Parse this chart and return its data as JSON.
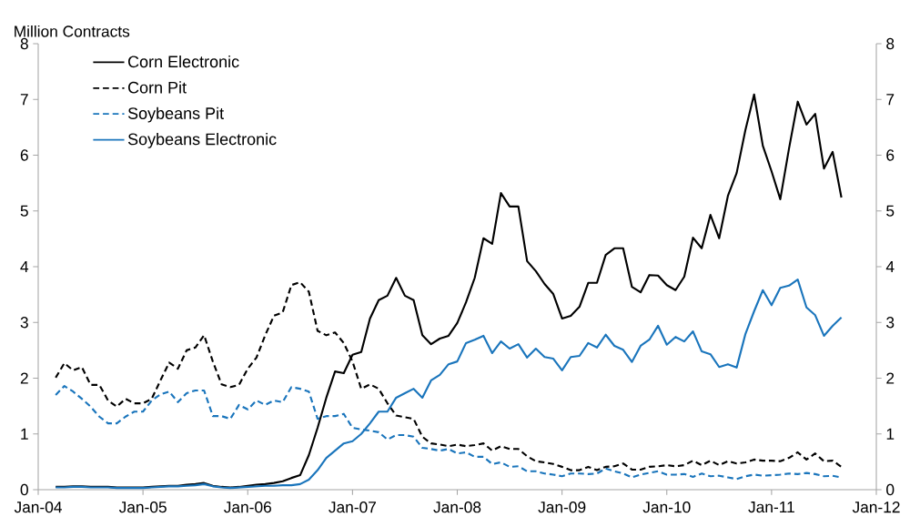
{
  "chart_data": {
    "type": "line",
    "ylabel": "Million Contracts",
    "x": [
      "2004-03",
      "2004-04",
      "2004-05",
      "2004-06",
      "2004-07",
      "2004-08",
      "2004-09",
      "2004-10",
      "2004-11",
      "2004-12",
      "2005-01",
      "2005-02",
      "2005-03",
      "2005-04",
      "2005-05",
      "2005-06",
      "2005-07",
      "2005-08",
      "2005-09",
      "2005-10",
      "2005-11",
      "2005-12",
      "2006-01",
      "2006-02",
      "2006-03",
      "2006-04",
      "2006-05",
      "2006-06",
      "2006-07",
      "2006-08",
      "2006-09",
      "2006-10",
      "2006-11",
      "2006-12",
      "2007-01",
      "2007-02",
      "2007-03",
      "2007-04",
      "2007-05",
      "2007-06",
      "2007-07",
      "2007-08",
      "2007-09",
      "2007-10",
      "2007-11",
      "2007-12",
      "2008-01",
      "2008-02",
      "2008-03",
      "2008-04",
      "2008-05",
      "2008-06",
      "2008-07",
      "2008-08",
      "2008-09",
      "2008-10",
      "2008-11",
      "2008-12",
      "2009-01",
      "2009-02",
      "2009-03",
      "2009-04",
      "2009-05",
      "2009-06",
      "2009-07",
      "2009-08",
      "2009-09",
      "2009-10",
      "2009-11",
      "2009-12",
      "2010-01",
      "2010-02",
      "2010-03",
      "2010-04",
      "2010-05",
      "2010-06",
      "2010-07",
      "2010-08",
      "2010-09",
      "2010-10",
      "2010-11",
      "2010-12",
      "2011-01",
      "2011-02",
      "2011-03",
      "2011-04",
      "2011-05",
      "2011-06",
      "2011-07",
      "2011-08",
      "2011-09"
    ],
    "series": [
      {
        "name": "Corn Electronic",
        "color": "#000000",
        "line_style": "solid",
        "values": [
          0.05,
          0.05,
          0.06,
          0.06,
          0.05,
          0.05,
          0.05,
          0.04,
          0.04,
          0.04,
          0.04,
          0.05,
          0.06,
          0.07,
          0.07,
          0.09,
          0.1,
          0.12,
          0.07,
          0.05,
          0.04,
          0.05,
          0.07,
          0.09,
          0.1,
          0.12,
          0.15,
          0.21,
          0.26,
          0.62,
          1.11,
          1.65,
          2.12,
          2.09,
          2.42,
          2.47,
          3.07,
          3.4,
          3.48,
          3.8,
          3.48,
          3.4,
          2.77,
          2.61,
          2.71,
          2.76,
          2.99,
          3.36,
          3.8,
          4.51,
          4.41,
          5.32,
          5.08,
          5.08,
          4.1,
          3.92,
          3.69,
          3.51,
          3.07,
          3.12,
          3.28,
          3.71,
          3.71,
          4.21,
          4.33,
          4.33,
          3.64,
          3.54,
          3.85,
          3.84,
          3.67,
          3.58,
          3.82,
          4.52,
          4.33,
          4.93,
          4.51,
          5.27,
          5.68,
          6.45,
          7.09,
          6.17,
          5.71,
          5.21,
          6.12,
          6.96,
          6.55,
          6.74,
          5.76,
          6.06,
          5.24
        ]
      },
      {
        "name": "Corn Pit",
        "color": "#000000",
        "line_style": "dashed",
        "values": [
          2.01,
          2.27,
          2.14,
          2.2,
          1.88,
          1.88,
          1.6,
          1.49,
          1.63,
          1.55,
          1.55,
          1.63,
          1.96,
          2.28,
          2.17,
          2.5,
          2.55,
          2.77,
          2.3,
          1.89,
          1.84,
          1.88,
          2.17,
          2.37,
          2.77,
          3.12,
          3.18,
          3.67,
          3.72,
          3.55,
          2.85,
          2.77,
          2.82,
          2.63,
          2.3,
          1.81,
          1.89,
          1.81,
          1.55,
          1.33,
          1.3,
          1.27,
          0.95,
          0.83,
          0.81,
          0.78,
          0.81,
          0.78,
          0.8,
          0.83,
          0.7,
          0.78,
          0.73,
          0.73,
          0.6,
          0.51,
          0.49,
          0.46,
          0.41,
          0.35,
          0.35,
          0.41,
          0.35,
          0.41,
          0.42,
          0.47,
          0.36,
          0.36,
          0.41,
          0.42,
          0.44,
          0.42,
          0.44,
          0.52,
          0.44,
          0.52,
          0.44,
          0.51,
          0.47,
          0.49,
          0.54,
          0.52,
          0.52,
          0.51,
          0.57,
          0.67,
          0.54,
          0.65,
          0.51,
          0.52,
          0.41
        ]
      },
      {
        "name": "Soybeans Pit",
        "color": "#1a75bc",
        "line_style": "dashed",
        "values": [
          1.7,
          1.86,
          1.76,
          1.63,
          1.49,
          1.31,
          1.19,
          1.19,
          1.31,
          1.4,
          1.4,
          1.6,
          1.71,
          1.76,
          1.57,
          1.73,
          1.78,
          1.78,
          1.32,
          1.32,
          1.27,
          1.52,
          1.44,
          1.6,
          1.52,
          1.6,
          1.57,
          1.84,
          1.81,
          1.76,
          1.27,
          1.32,
          1.32,
          1.36,
          1.11,
          1.08,
          1.06,
          1.03,
          0.9,
          0.98,
          0.98,
          0.95,
          0.75,
          0.73,
          0.7,
          0.73,
          0.65,
          0.67,
          0.59,
          0.59,
          0.46,
          0.49,
          0.41,
          0.42,
          0.33,
          0.33,
          0.29,
          0.27,
          0.24,
          0.29,
          0.29,
          0.28,
          0.29,
          0.38,
          0.33,
          0.29,
          0.22,
          0.27,
          0.3,
          0.33,
          0.27,
          0.27,
          0.28,
          0.23,
          0.29,
          0.24,
          0.25,
          0.22,
          0.19,
          0.24,
          0.27,
          0.25,
          0.26,
          0.27,
          0.29,
          0.28,
          0.3,
          0.28,
          0.24,
          0.25,
          0.22
        ]
      },
      {
        "name": "Soybeans Electronic",
        "color": "#1a75bc",
        "line_style": "solid",
        "values": [
          0.04,
          0.04,
          0.05,
          0.05,
          0.04,
          0.04,
          0.04,
          0.03,
          0.03,
          0.03,
          0.03,
          0.04,
          0.05,
          0.06,
          0.06,
          0.07,
          0.08,
          0.1,
          0.06,
          0.04,
          0.03,
          0.04,
          0.05,
          0.06,
          0.07,
          0.07,
          0.08,
          0.08,
          0.1,
          0.18,
          0.35,
          0.57,
          0.7,
          0.83,
          0.87,
          1.0,
          1.19,
          1.4,
          1.4,
          1.65,
          1.73,
          1.81,
          1.65,
          1.96,
          2.06,
          2.25,
          2.3,
          2.63,
          2.69,
          2.76,
          2.45,
          2.66,
          2.53,
          2.61,
          2.37,
          2.53,
          2.38,
          2.35,
          2.14,
          2.38,
          2.4,
          2.63,
          2.55,
          2.78,
          2.58,
          2.51,
          2.29,
          2.58,
          2.69,
          2.94,
          2.6,
          2.74,
          2.66,
          2.84,
          2.48,
          2.43,
          2.2,
          2.25,
          2.19,
          2.79,
          3.2,
          3.58,
          3.31,
          3.62,
          3.66,
          3.77,
          3.27,
          3.13,
          2.76,
          2.94,
          3.09
        ]
      }
    ],
    "xlim": [
      "2004-01",
      "2012-01"
    ],
    "xticks": [
      {
        "value": "2004-01",
        "label": "Jan-04"
      },
      {
        "value": "2005-01",
        "label": "Jan-05"
      },
      {
        "value": "2006-01",
        "label": "Jan-06"
      },
      {
        "value": "2007-01",
        "label": "Jan-07"
      },
      {
        "value": "2008-01",
        "label": "Jan-08"
      },
      {
        "value": "2009-01",
        "label": "Jan-09"
      },
      {
        "value": "2010-01",
        "label": "Jan-10"
      },
      {
        "value": "2011-01",
        "label": "Jan-11"
      },
      {
        "value": "2012-01",
        "label": "Jan-12"
      }
    ],
    "ylim": [
      0,
      8
    ],
    "yticks": [
      0,
      1,
      2,
      3,
      4,
      5,
      6,
      7,
      8
    ],
    "y2lim": [
      0,
      8
    ],
    "y2ticks": [
      0,
      1,
      2,
      3,
      4,
      5,
      6,
      7,
      8
    ],
    "legend": "top left",
    "marker": "none"
  }
}
